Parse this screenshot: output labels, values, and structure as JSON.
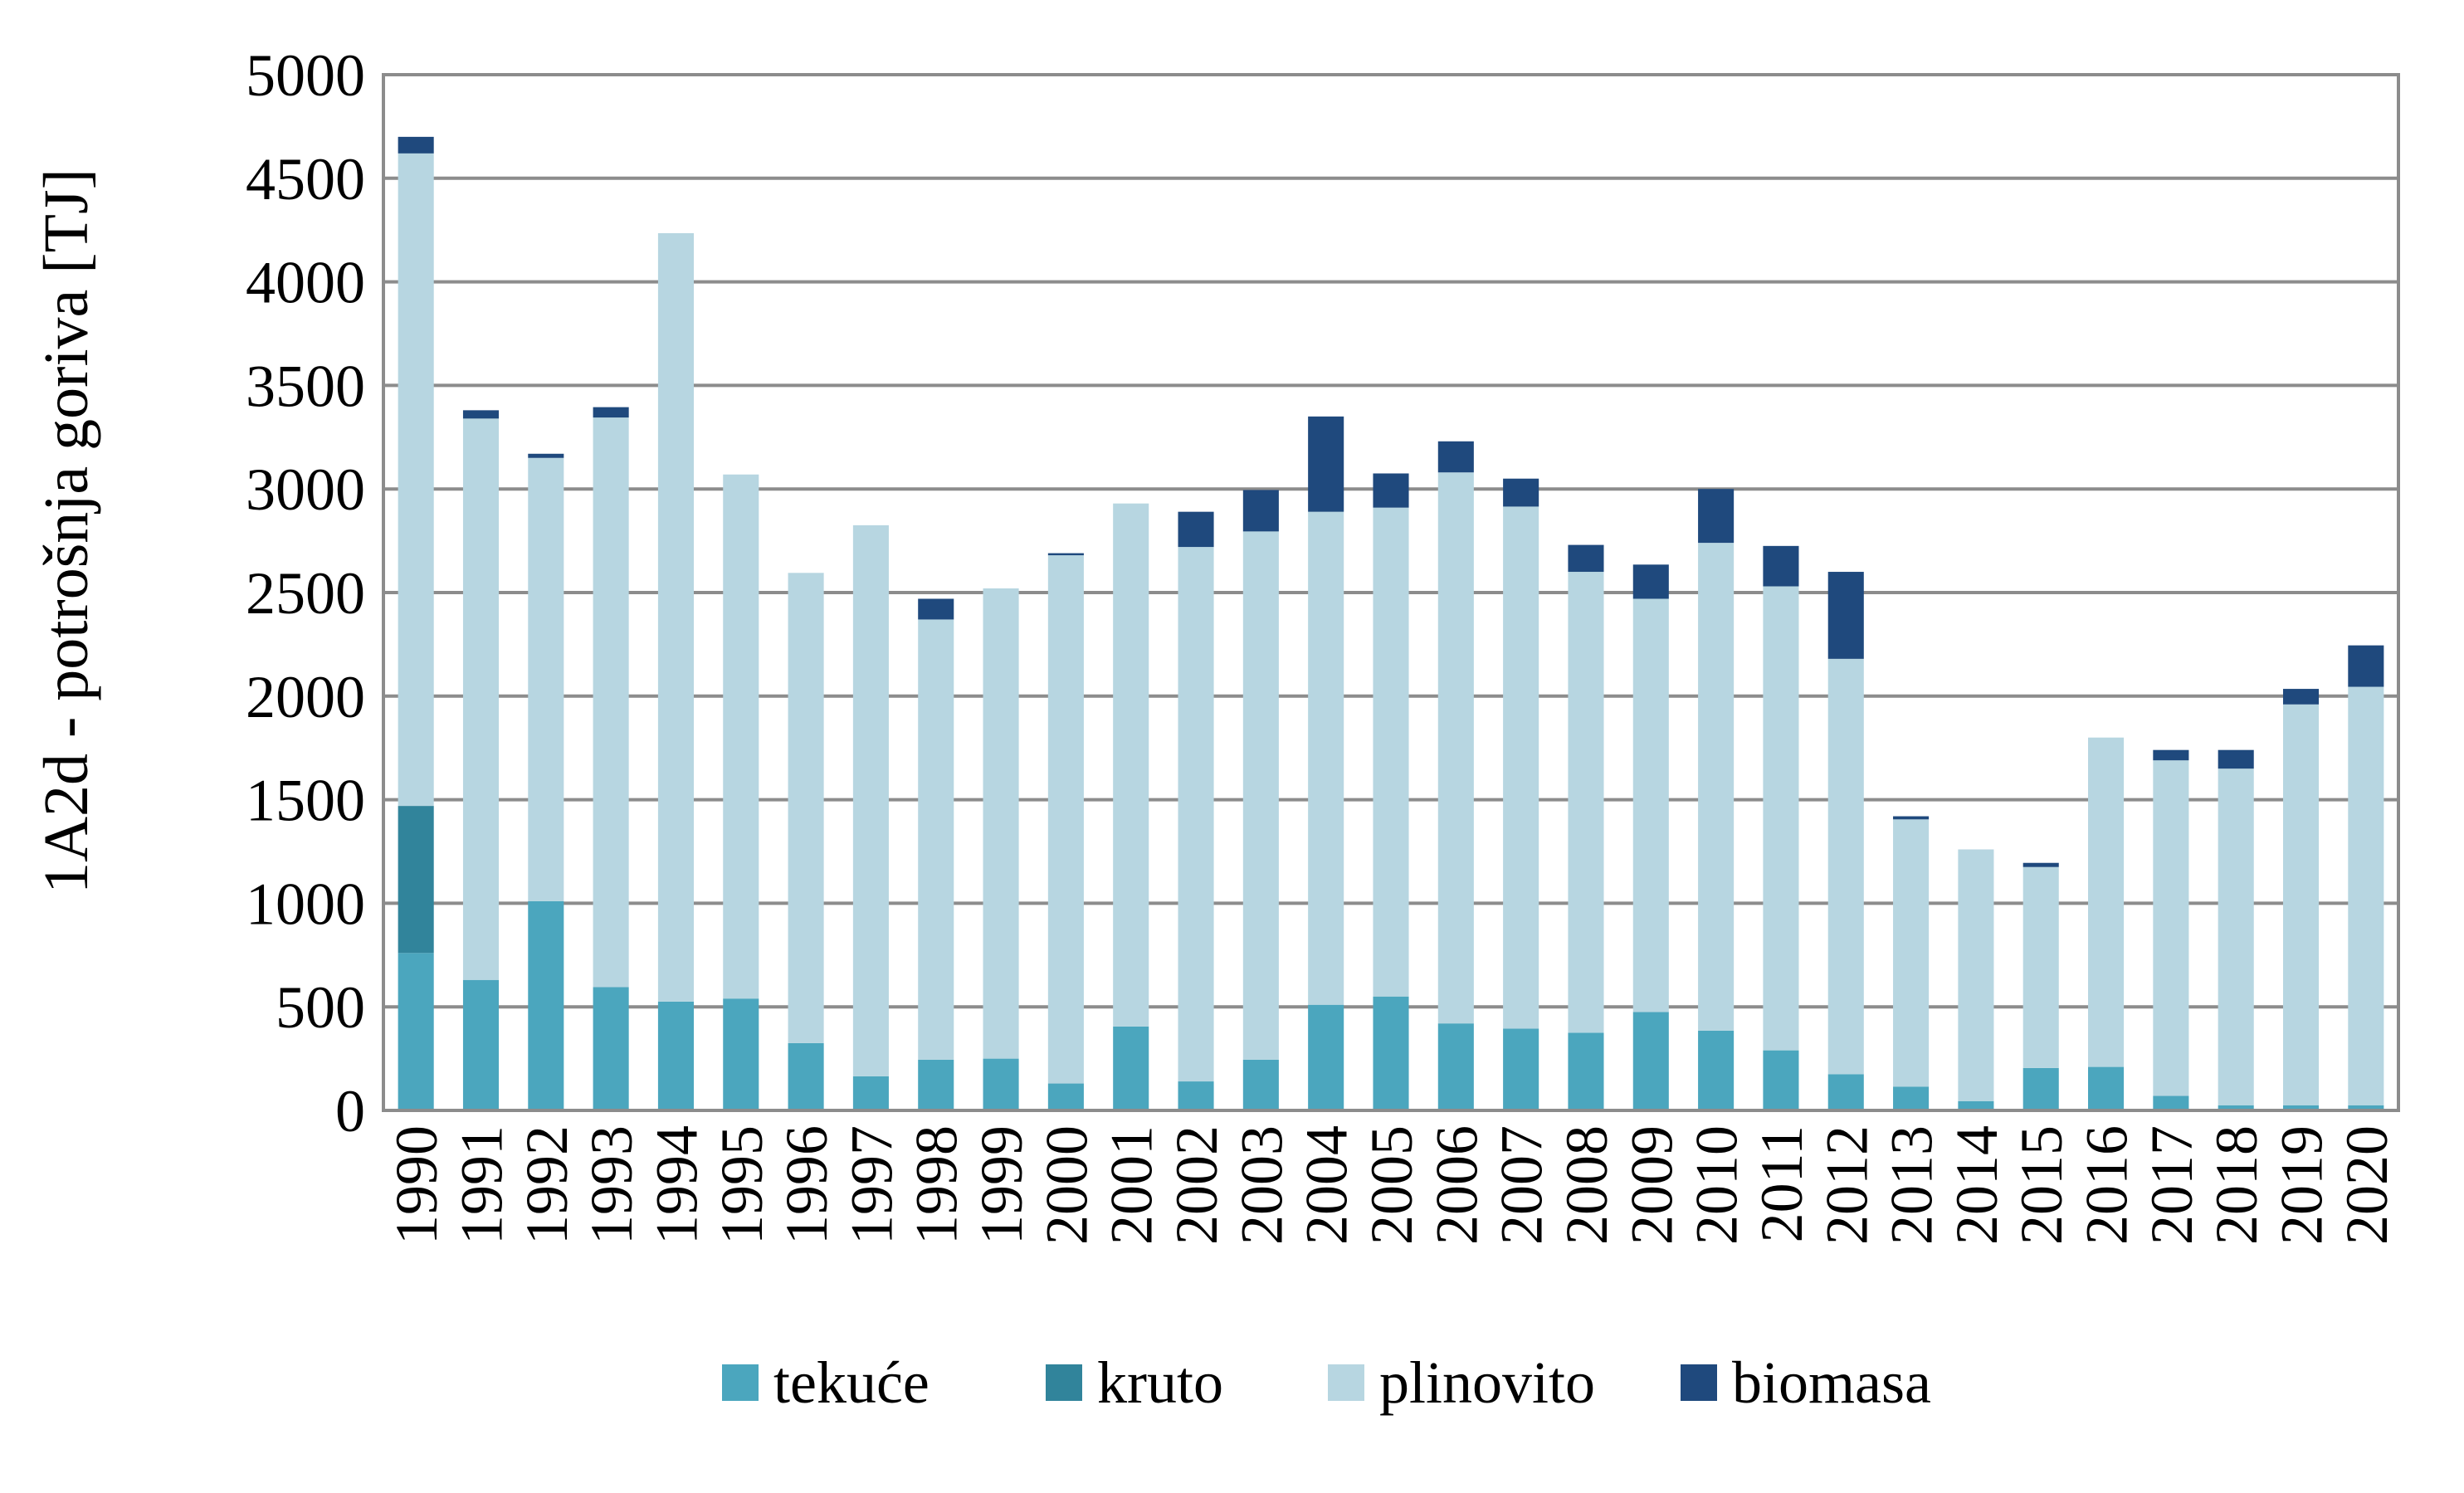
{
  "chart_data": {
    "type": "bar",
    "stacked": true,
    "ylabel": "1A2d  - potrošnja goriva [TJ]",
    "xlabel": "",
    "ylim": [
      0,
      5000
    ],
    "yticks": [
      "0",
      "500",
      "1000",
      "1500",
      "2000",
      "2500",
      "3000",
      "3500",
      "4000",
      "4500",
      "5000"
    ],
    "grid": true,
    "legend_position": "bottom",
    "categories": [
      "1990",
      "1991",
      "1992",
      "1993",
      "1994",
      "1995",
      "1996",
      "1997",
      "1998",
      "1999",
      "2000",
      "2001",
      "2002",
      "2003",
      "2004",
      "2005",
      "2006",
      "2007",
      "2008",
      "2009",
      "2010",
      "2011",
      "2012",
      "2013",
      "2014",
      "2015",
      "2016",
      "2017",
      "2018",
      "2019",
      "2020"
    ],
    "series": [
      {
        "name": "tekuće",
        "color": "#4BA6BE",
        "values": [
          760,
          630,
          1010,
          595,
          525,
          540,
          325,
          165,
          245,
          250,
          130,
          405,
          140,
          245,
          510,
          550,
          420,
          395,
          375,
          475,
          385,
          290,
          175,
          115,
          45,
          205,
          210,
          70,
          25,
          25,
          25
        ]
      },
      {
        "name": "kruto",
        "color": "#31849B",
        "values": [
          710,
          0,
          0,
          0,
          0,
          0,
          0,
          0,
          0,
          0,
          0,
          0,
          0,
          0,
          0,
          0,
          0,
          0,
          0,
          0,
          0,
          0,
          0,
          0,
          0,
          0,
          0,
          0,
          0,
          0,
          0
        ]
      },
      {
        "name": "plinovito",
        "color": "#B7D6E1",
        "values": [
          3150,
          2710,
          2140,
          2750,
          3710,
          2530,
          2270,
          2660,
          2125,
          2270,
          2550,
          2525,
          2580,
          2550,
          2380,
          2360,
          2660,
          2520,
          2225,
          1995,
          2355,
          2240,
          2005,
          1290,
          1215,
          970,
          1590,
          1620,
          1625,
          1935,
          2020
        ]
      },
      {
        "name": "biomasa",
        "color": "#1F497D",
        "values": [
          80,
          40,
          20,
          50,
          0,
          0,
          0,
          0,
          100,
          0,
          10,
          0,
          170,
          200,
          460,
          165,
          150,
          135,
          130,
          165,
          260,
          195,
          420,
          15,
          0,
          20,
          0,
          50,
          90,
          75,
          200
        ]
      }
    ]
  }
}
